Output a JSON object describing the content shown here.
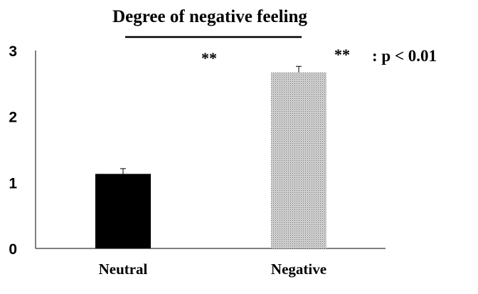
{
  "chart_data": {
    "type": "bar",
    "title": "Degree of negative feeling",
    "categories": [
      "Neutral",
      "Negative"
    ],
    "values": [
      1.13,
      2.67
    ],
    "errors": [
      0.08,
      0.09
    ],
    "xlabel": "",
    "ylabel": "",
    "ylim": [
      0,
      3
    ],
    "yticks": [
      "0",
      "1",
      "2",
      "3"
    ],
    "grid": false,
    "significance": {
      "comparison_marker": "**",
      "bar_marker": "**",
      "legend": ": p < 0.01"
    },
    "colors": {
      "Neutral": "#000000",
      "Negative": "#d9d9d9",
      "negative_pattern_dot": "#6b6b6b",
      "axis": "#000000"
    }
  }
}
